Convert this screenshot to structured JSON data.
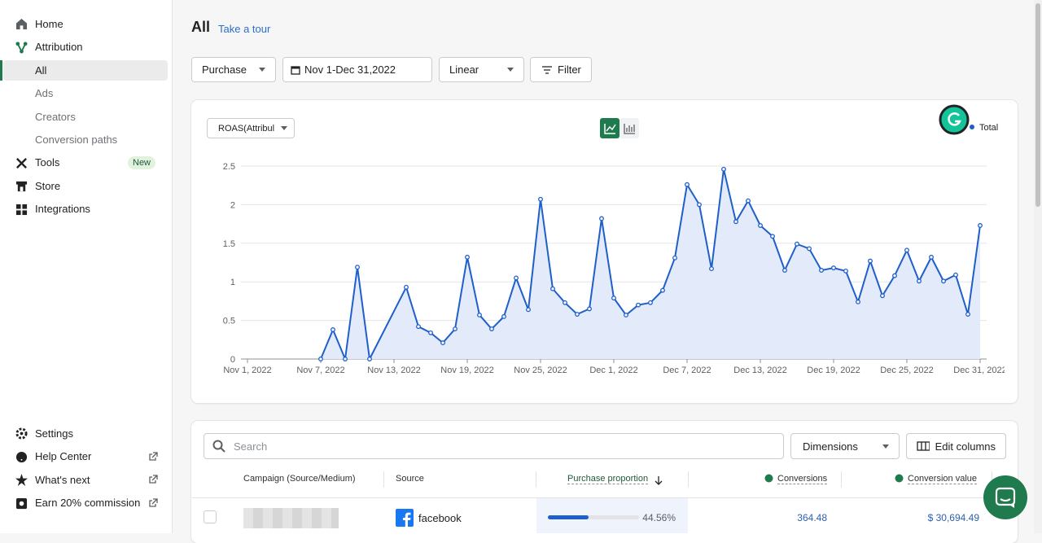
{
  "sidebar": {
    "home": "Home",
    "attribution": "Attribution",
    "sub": [
      "All",
      "Ads",
      "Creators",
      "Conversion paths"
    ],
    "tools": "Tools",
    "new_badge": "New",
    "store": "Store",
    "integrations": "Integrations",
    "bottom": [
      "Settings",
      "Help Center",
      "What's next",
      "Earn 20% commission"
    ]
  },
  "header": {
    "title": "All",
    "tour_link": "Take a tour"
  },
  "toolbar": {
    "event": "Purchase",
    "date_range": "Nov 1-Dec 31,2022",
    "model": "Linear",
    "filter": "Filter"
  },
  "metric_selector": "ROAS(Attribul",
  "chart_data": {
    "type": "line",
    "x": [
      "Nov 7, 2022",
      "Nov 8, 2022",
      "Nov 9, 2022",
      "Nov 10, 2022",
      "Nov 11, 2022",
      "Nov 14, 2022",
      "Nov 15, 2022",
      "Nov 16, 2022",
      "Nov 17, 2022",
      "Nov 18, 2022",
      "Nov 19, 2022",
      "Nov 20, 2022",
      "Nov 21, 2022",
      "Nov 22, 2022",
      "Nov 23, 2022",
      "Nov 24, 2022",
      "Nov 25, 2022",
      "Nov 26, 2022",
      "Nov 27, 2022",
      "Nov 28, 2022",
      "Nov 29, 2022",
      "Nov 30, 2022",
      "Dec 1, 2022",
      "Dec 2, 2022",
      "Dec 3, 2022",
      "Dec 4, 2022",
      "Dec 5, 2022",
      "Dec 6, 2022",
      "Dec 7, 2022",
      "Dec 8, 2022",
      "Dec 9, 2022",
      "Dec 10, 2022",
      "Dec 11, 2022",
      "Dec 12, 2022",
      "Dec 13, 2022",
      "Dec 14, 2022",
      "Dec 15, 2022",
      "Dec 16, 2022",
      "Dec 17, 2022",
      "Dec 18, 2022",
      "Dec 19, 2022",
      "Dec 20, 2022",
      "Dec 21, 2022",
      "Dec 22, 2022",
      "Dec 23, 2022",
      "Dec 24, 2022",
      "Dec 25, 2022",
      "Dec 26, 2022",
      "Dec 27, 2022",
      "Dec 28, 2022",
      "Dec 29, 2022",
      "Dec 30, 2022",
      "Dec 31, 2022"
    ],
    "series": [
      {
        "name": "Total",
        "color": "#1f5fc9",
        "fill": "#e3ebfb",
        "values": [
          0,
          0.38,
          0,
          1.19,
          0,
          0.93,
          0.42,
          0.34,
          0.21,
          0.39,
          1.32,
          0.57,
          0.39,
          0.55,
          1.05,
          0.64,
          2.07,
          0.91,
          0.73,
          0.58,
          0.65,
          1.82,
          0.79,
          0.57,
          0.7,
          0.73,
          0.89,
          1.31,
          2.26,
          2.0,
          1.17,
          2.46,
          1.78,
          2.05,
          1.73,
          1.59,
          1.15,
          1.49,
          1.43,
          1.15,
          1.18,
          1.14,
          0.74,
          1.27,
          0.82,
          1.08,
          1.41,
          1.01,
          1.32,
          1.01,
          1.09,
          0.58,
          1.73
        ]
      }
    ],
    "xlim": [
      "Nov 1, 2022",
      "Dec 31, 2022"
    ],
    "xticks": [
      "Nov 1, 2022",
      "Nov 7, 2022",
      "Nov 13, 2022",
      "Nov 19, 2022",
      "Nov 25, 2022",
      "Dec 1, 2022",
      "Dec 7, 2022",
      "Dec 13, 2022",
      "Dec 19, 2022",
      "Dec 25, 2022",
      "Dec 31, 2022"
    ],
    "ylim": [
      0,
      2.5
    ],
    "yticks": [
      0,
      0.5,
      1,
      1.5,
      2,
      2.5
    ],
    "grid": true,
    "legend": "top-right"
  },
  "table": {
    "search_placeholder": "Search",
    "dimensions": "Dimensions",
    "edit_columns": "Edit columns",
    "columns": [
      "Campaign (Source/Medium)",
      "Source",
      "Purchase proportion",
      "Conversions",
      "Conversion value"
    ],
    "rows": [
      {
        "source": "facebook",
        "proportion": 44.56,
        "proportion_label": "44.56%",
        "conversions": "364.48",
        "conversion_value": "$ 30,694.49"
      }
    ]
  }
}
